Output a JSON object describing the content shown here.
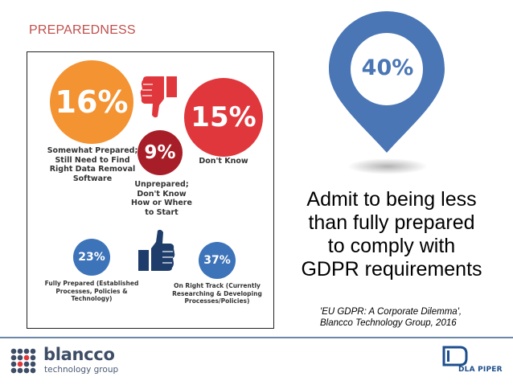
{
  "slide": {
    "title": "PREPAREDNESS"
  },
  "infographic": {
    "items": [
      {
        "value": "16%",
        "label": "Somewhat Prepared;\nStill Need to Find\nRight Data Removal\nSoftware",
        "color": "#f39332"
      },
      {
        "value": "15%",
        "label": "Don't Know",
        "color": "#e0373c"
      },
      {
        "value": "9%",
        "label": "Unprepared;\nDon't Know\nHow or Where\nto Start",
        "color": "#a81e28"
      },
      {
        "value": "23%",
        "label": "Fully Prepared (Established\nProcesses, Policies &\nTechnology)",
        "color": "#3d73b8"
      },
      {
        "value": "37%",
        "label": "On Right Track (Currently\nResearching & Developing\nProcesses/Policies)",
        "color": "#3d73b8"
      }
    ],
    "icons": [
      "thumbs-down-icon",
      "thumbs-up-icon"
    ]
  },
  "callout": {
    "value": "40%",
    "color": "#4a76b5",
    "text": "Admit to being less\nthan  fully prepared\nto comply with\nGDPR requirements"
  },
  "citation": {
    "line1": "'EU GDPR: A Corporate Dilemma',",
    "line2": "Blancco Technology Group, 2016"
  },
  "footer": {
    "brand_name": "blancco",
    "brand_sub": "technology group",
    "partner": "DLA PIPER"
  }
}
